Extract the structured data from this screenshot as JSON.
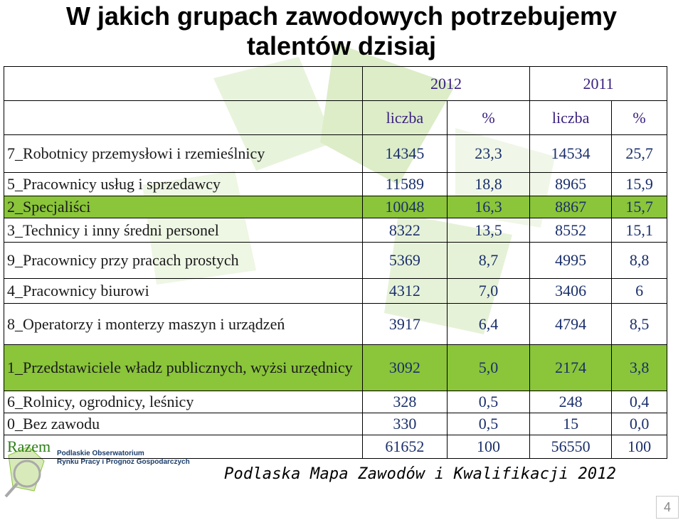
{
  "title": {
    "line1": "W jakich grupach zawodowych potrzebujemy",
    "line2": "talentów dzisiaj"
  },
  "header": {
    "year_2012": "2012",
    "year_2011": "2011",
    "col_liczba_2012": "liczba",
    "col_pct_2012": "%",
    "col_liczba_2011": "liczba",
    "col_pct_2011": "%"
  },
  "rows": [
    {
      "label": "7_Robotnicy przemysłowi i rzemieślnicy",
      "l2012": "14345",
      "p2012": "23,3",
      "l2011": "14534",
      "p2011": "25,7",
      "green": false
    },
    {
      "label": "5_Pracownicy usług i sprzedawcy",
      "l2012": "11589",
      "p2012": "18,8",
      "l2011": "8965",
      "p2011": "15,9",
      "green": false
    },
    {
      "label": "2_Specjaliści",
      "l2012": "10048",
      "p2012": "16,3",
      "l2011": "8867",
      "p2011": "15,7",
      "green": true
    },
    {
      "label": "3_Technicy i inny średni personel",
      "l2012": "8322",
      "p2012": "13,5",
      "l2011": "8552",
      "p2011": "15,1",
      "green": false
    },
    {
      "label": "9_Pracownicy przy pracach prostych",
      "l2012": "5369",
      "p2012": "8,7",
      "l2011": "4995",
      "p2011": "8,8",
      "green": false
    },
    {
      "label": "4_Pracownicy biurowi",
      "l2012": "4312",
      "p2012": "7,0",
      "l2011": "3406",
      "p2011": "6",
      "green": false
    },
    {
      "label": "8_Operatorzy i monterzy maszyn i urządzeń",
      "l2012": "3917",
      "p2012": "6,4",
      "l2011": "4794",
      "p2011": "8,5",
      "green": false
    },
    {
      "label": "1_Przedstawiciele władz publicznych, wyżsi urzędnicy",
      "l2012": "3092",
      "p2012": "5,0",
      "l2011": "2174",
      "p2011": "3,8",
      "green": true
    },
    {
      "label": "6_Rolnicy, ogrodnicy, leśnicy",
      "l2012": "328",
      "p2012": "0,5",
      "l2011": "248",
      "p2011": "0,4",
      "green": false
    },
    {
      "label": "0_Bez zawodu",
      "l2012": "330",
      "p2012": "0,5",
      "l2011": "15",
      "p2011": "0,0",
      "green": false
    }
  ],
  "total": {
    "label": "Razem",
    "l2012": "61652",
    "p2012": "100",
    "l2011": "56550",
    "p2011": "100"
  },
  "source": "Podlaska Mapa Zawodów i Kwalifikacji 2012",
  "logo": {
    "line1": "Podlaskie Obserwatorium",
    "line2": "Rynku Pracy i Prognoz Gospodarczych"
  },
  "page_number": "4",
  "colors": {
    "green_row": "#8ac53a",
    "number_text": "#1a2f6b"
  }
}
